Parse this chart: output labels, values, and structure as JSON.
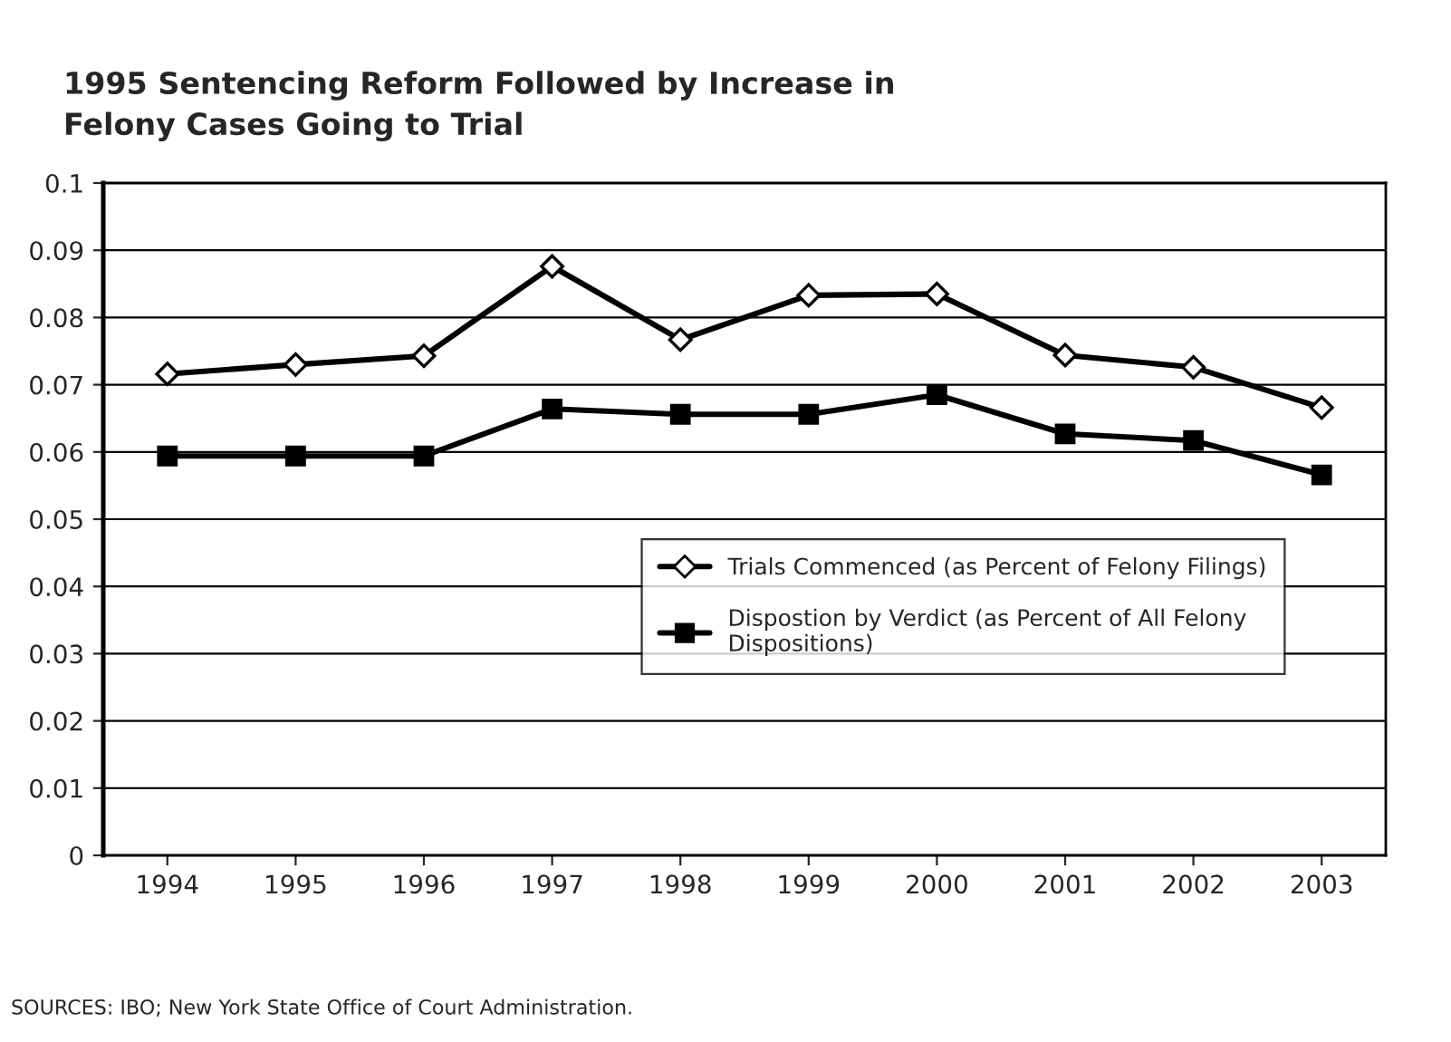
{
  "chart_data": {
    "type": "line",
    "title": "1995 Sentencing Reform Followed by Increase in\nFelony Cases Going to Trial",
    "categories": [
      "1994",
      "1995",
      "1996",
      "1997",
      "1998",
      "1999",
      "2000",
      "2001",
      "2002",
      "2003"
    ],
    "series": [
      {
        "name": "Trials Commenced (as Percent of Felony Filings)",
        "color": "#000000",
        "marker": "diamond",
        "values": [
          0.0716,
          0.073,
          0.0743,
          0.0876,
          0.0767,
          0.0833,
          0.0835,
          0.0744,
          0.0726,
          0.0666
        ]
      },
      {
        "name": "Dispostion by Verdict (as Percent of All Felony\nDispositions)",
        "color": "#000000",
        "marker": "square",
        "values": [
          0.0594,
          0.0594,
          0.0594,
          0.0664,
          0.0656,
          0.0656,
          0.0685,
          0.0627,
          0.0617,
          0.0566
        ]
      }
    ],
    "ylim": [
      0,
      0.1
    ],
    "yticks": [
      0,
      0.01,
      0.02,
      0.03,
      0.04,
      0.05,
      0.06,
      0.07,
      0.08,
      0.09,
      0.1
    ],
    "grid": "y",
    "legend": "right",
    "line_style": "solid",
    "annotations": [
      "SOURCES: IBO; New York State Office of Court Administration."
    ]
  }
}
